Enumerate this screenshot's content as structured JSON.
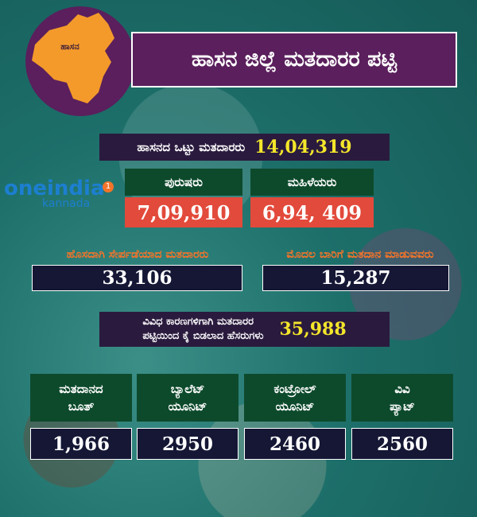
{
  "header": {
    "map_label": "ಹಾಸನ",
    "title": "ಹಾಸನ ಜಿಲ್ಲೆ ಮತದಾರರ ಪಟ್ಟಿ"
  },
  "logo": {
    "brand": "oneindia",
    "badge": "1",
    "sub": "kannada"
  },
  "total": {
    "label": "ಹಾಸನದ ಒಟ್ಟು ಮತದಾರರು",
    "value": "14,04,319"
  },
  "gender": [
    {
      "label": "ಪುರುಷರು",
      "value": "7,09,910"
    },
    {
      "label": "ಮಹಿಳೆಯರು",
      "value": "6,94, 409"
    }
  ],
  "new_voters": [
    {
      "label": "ಹೊಸದಾಗಿ ಸೇರ್ಪಡೆಯಾದ ಮತದಾರರು",
      "value": "33,106"
    },
    {
      "label": "ಮೊದಲ ಬಾರಿಗೆ ಮತದಾನ ಮಾಡುವವರು",
      "value": "15,287"
    }
  ],
  "removed": {
    "label": [
      "ವಿವಿಧ ಕಾರಣಗಳಿಗಾಗಿ ಮತದಾರರ",
      "ಪಟ್ಟಿಯಿಂದ ಕೈ ಬಿಡಲಾದ ಹೆಸರುಗಳು"
    ],
    "value": "35,988"
  },
  "equipment": [
    {
      "label": [
        "ಮತದಾನದ",
        "ಬೂತ್"
      ],
      "value": "1,966"
    },
    {
      "label": [
        "ಬ್ಯಾಲೆಟ್",
        "ಯೂನಿಟ್"
      ],
      "value": "2950"
    },
    {
      "label": [
        "ಕಂಟ್ರೋಲ್",
        "ಯೂನಿಟ್"
      ],
      "value": "2460"
    },
    {
      "label": [
        "ವಿವಿ",
        "ಪ್ಯಾಟ್"
      ],
      "value": "2560"
    }
  ]
}
